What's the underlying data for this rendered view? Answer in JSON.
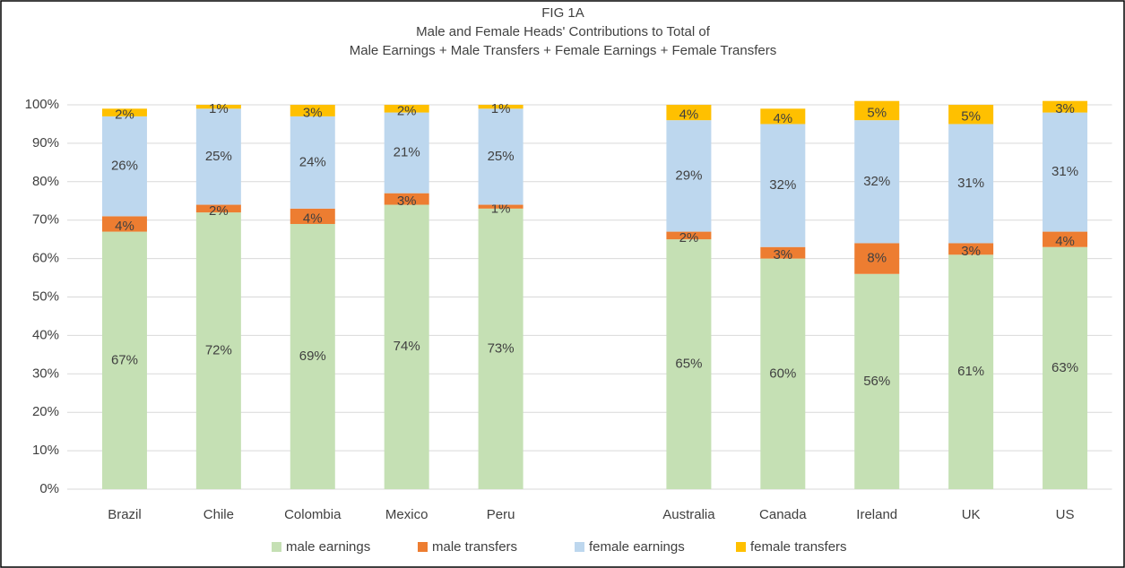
{
  "chart_data": {
    "type": "stacked_bar",
    "title": [
      "FIG 1A",
      "Male and Female Heads' Contributions to Total of",
      "Male Earnings + Male Transfers +  Female Earnings + Female Transfers"
    ],
    "categories": [
      "Brazil",
      "Chile",
      "Colombia",
      "Mexico",
      "Peru",
      null,
      "Australia",
      "Canada",
      "Ireland",
      "UK",
      "US"
    ],
    "series": [
      {
        "name": "male earnings",
        "color": "#c5e0b4",
        "values": [
          67,
          72,
          69,
          74,
          73,
          null,
          65,
          60,
          56,
          61,
          63
        ],
        "value_labels": [
          "67%",
          "72%",
          "69%",
          "74%",
          "73%",
          null,
          "65%",
          "60%",
          "56%",
          "61%",
          "63%"
        ]
      },
      {
        "name": "male transfers",
        "color": "#ed7d31",
        "values": [
          4,
          2,
          4,
          3,
          1,
          null,
          2,
          3,
          8,
          3,
          4
        ],
        "value_labels": [
          "4%",
          "2%",
          "4%",
          "3%",
          "1%",
          null,
          "2%",
          "3%",
          "8%",
          "3%",
          "4%"
        ]
      },
      {
        "name": "female earnings",
        "color": "#bdd7ee",
        "values": [
          26,
          25,
          24,
          21,
          25,
          null,
          29,
          32,
          32,
          31,
          31
        ],
        "value_labels": [
          "26%",
          "25%",
          "24%",
          "21%",
          "25%",
          null,
          "29%",
          "32%",
          "32%",
          "31%",
          "31%"
        ]
      },
      {
        "name": "female transfers",
        "color": "#ffc000",
        "values": [
          2,
          1,
          3,
          2,
          1,
          null,
          4,
          4,
          5,
          5,
          3
        ],
        "value_labels": [
          "2%",
          "1%",
          "3%",
          "2%",
          "1%",
          null,
          "4%",
          "4%",
          "5%",
          "5%",
          "3%"
        ]
      }
    ],
    "ylim": [
      0,
      100
    ],
    "yticks": [
      {
        "value": 0,
        "label": "0%"
      },
      {
        "value": 10,
        "label": "10%"
      },
      {
        "value": 20,
        "label": "20%"
      },
      {
        "value": 30,
        "label": "30%"
      },
      {
        "value": 40,
        "label": "40%"
      },
      {
        "value": 50,
        "label": "50%"
      },
      {
        "value": 60,
        "label": "60%"
      },
      {
        "value": 70,
        "label": "70%"
      },
      {
        "value": 80,
        "label": "80%"
      },
      {
        "value": 90,
        "label": "90%"
      },
      {
        "value": 100,
        "label": "100%"
      }
    ],
    "grid": true,
    "legend": "bottom"
  }
}
